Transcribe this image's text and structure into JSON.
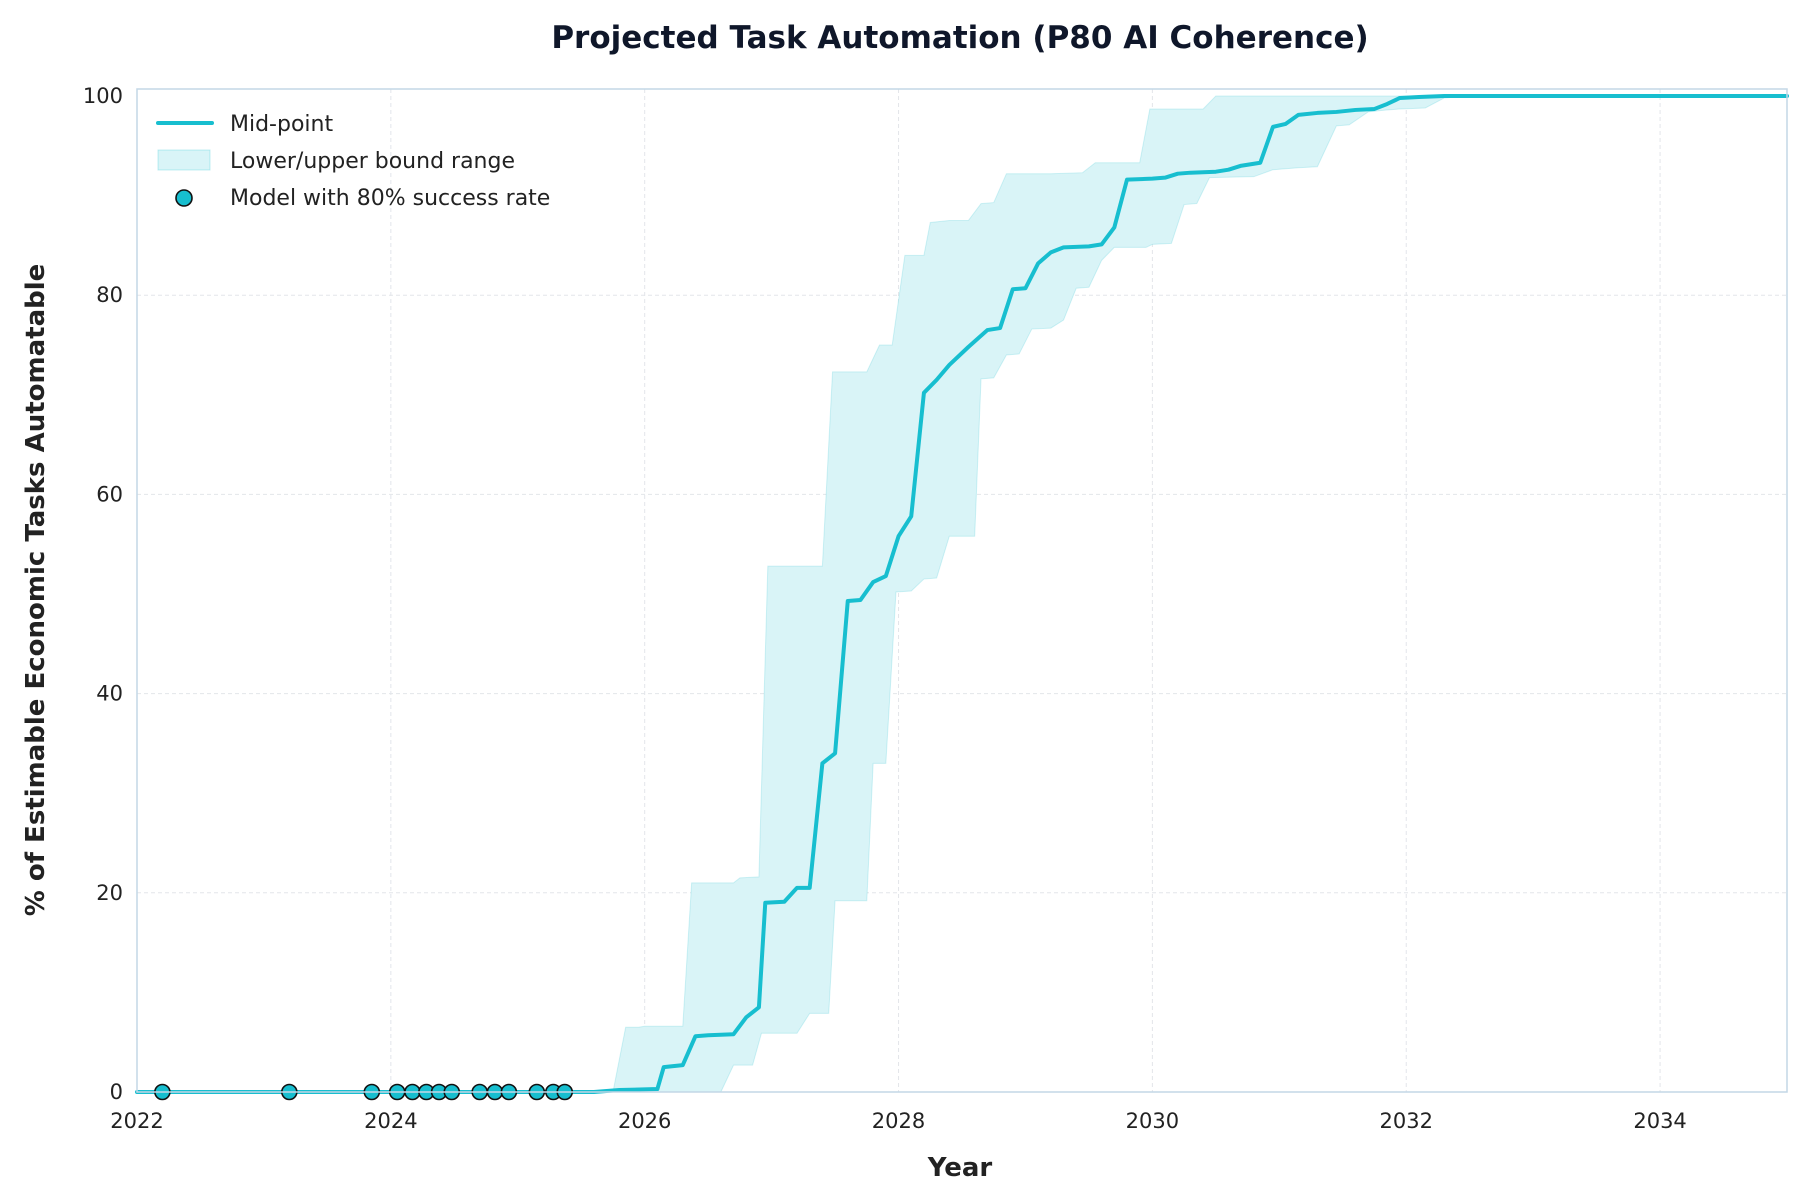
{
  "chart_data": {
    "type": "line",
    "title": "Projected Task Automation (P80 AI Coherence)",
    "xlabel": "Year",
    "ylabel": "% of Estimable Economic Tasks Automatable",
    "xlim": [
      2022,
      2035
    ],
    "ylim": [
      0,
      100
    ],
    "x_ticks": [
      "2022",
      "2024",
      "2026",
      "2028",
      "2030",
      "2032",
      "2034"
    ],
    "y_ticks": [
      "0",
      "20",
      "40",
      "60",
      "80",
      "100"
    ],
    "grid": true,
    "legend_position": "top-left",
    "colors": {
      "line": "#17becf",
      "band": "#d9f4f7",
      "marker_edge": "#111111"
    },
    "series": [
      {
        "name": "Mid-point",
        "type": "line",
        "points": [
          [
            2022.0,
            0
          ],
          [
            2025.6,
            0
          ],
          [
            2025.8,
            0.2
          ],
          [
            2026.1,
            0.3
          ],
          [
            2026.15,
            2.5
          ],
          [
            2026.3,
            2.7
          ],
          [
            2026.4,
            5.6
          ],
          [
            2026.5,
            5.7
          ],
          [
            2026.7,
            5.8
          ],
          [
            2026.8,
            7.5
          ],
          [
            2026.9,
            8.5
          ],
          [
            2026.95,
            19.0
          ],
          [
            2027.1,
            19.1
          ],
          [
            2027.2,
            20.5
          ],
          [
            2027.3,
            20.5
          ],
          [
            2027.4,
            33.0
          ],
          [
            2027.5,
            34.0
          ],
          [
            2027.6,
            49.3
          ],
          [
            2027.7,
            49.4
          ],
          [
            2027.8,
            51.2
          ],
          [
            2027.9,
            51.8
          ],
          [
            2028.0,
            55.8
          ],
          [
            2028.1,
            57.8
          ],
          [
            2028.2,
            70.2
          ],
          [
            2028.3,
            71.5
          ],
          [
            2028.4,
            73.0
          ],
          [
            2028.55,
            74.8
          ],
          [
            2028.7,
            76.5
          ],
          [
            2028.8,
            76.7
          ],
          [
            2028.9,
            80.6
          ],
          [
            2029.0,
            80.7
          ],
          [
            2029.1,
            83.2
          ],
          [
            2029.2,
            84.3
          ],
          [
            2029.3,
            84.8
          ],
          [
            2029.5,
            84.9
          ],
          [
            2029.6,
            85.1
          ],
          [
            2029.7,
            86.8
          ],
          [
            2029.8,
            91.6
          ],
          [
            2030.0,
            91.7
          ],
          [
            2030.1,
            91.8
          ],
          [
            2030.2,
            92.2
          ],
          [
            2030.3,
            92.3
          ],
          [
            2030.5,
            92.4
          ],
          [
            2030.6,
            92.6
          ],
          [
            2030.7,
            93.0
          ],
          [
            2030.85,
            93.3
          ],
          [
            2030.95,
            96.9
          ],
          [
            2031.05,
            97.2
          ],
          [
            2031.15,
            98.1
          ],
          [
            2031.3,
            98.3
          ],
          [
            2031.45,
            98.4
          ],
          [
            2031.6,
            98.6
          ],
          [
            2031.75,
            98.7
          ],
          [
            2031.85,
            99.2
          ],
          [
            2031.95,
            99.8
          ],
          [
            2032.1,
            99.9
          ],
          [
            2032.3,
            100
          ],
          [
            2035.0,
            100
          ]
        ]
      },
      {
        "name": "Lower/upper bound range",
        "type": "band",
        "upper": [
          [
            2022.0,
            0
          ],
          [
            2025.75,
            0
          ],
          [
            2025.85,
            6.5
          ],
          [
            2025.95,
            6.5
          ],
          [
            2026.0,
            6.6
          ],
          [
            2026.3,
            6.6
          ],
          [
            2026.37,
            21.0
          ],
          [
            2026.7,
            21.0
          ],
          [
            2026.75,
            21.5
          ],
          [
            2026.9,
            21.6
          ],
          [
            2026.97,
            52.8
          ],
          [
            2027.4,
            52.8
          ],
          [
            2027.48,
            72.3
          ],
          [
            2027.75,
            72.3
          ],
          [
            2027.85,
            75.0
          ],
          [
            2027.95,
            75.0
          ],
          [
            2028.05,
            84.0
          ],
          [
            2028.2,
            84.0
          ],
          [
            2028.25,
            87.3
          ],
          [
            2028.4,
            87.5
          ],
          [
            2028.55,
            87.5
          ],
          [
            2028.65,
            89.2
          ],
          [
            2028.75,
            89.3
          ],
          [
            2028.85,
            92.2
          ],
          [
            2029.2,
            92.2
          ],
          [
            2029.45,
            92.3
          ],
          [
            2029.55,
            93.3
          ],
          [
            2029.9,
            93.3
          ],
          [
            2029.98,
            98.7
          ],
          [
            2030.4,
            98.7
          ],
          [
            2030.5,
            100
          ],
          [
            2035.0,
            100
          ]
        ],
        "lower": [
          [
            2022.0,
            0
          ],
          [
            2026.6,
            0
          ],
          [
            2026.7,
            2.7
          ],
          [
            2026.85,
            2.7
          ],
          [
            2026.92,
            5.9
          ],
          [
            2027.2,
            5.9
          ],
          [
            2027.3,
            7.9
          ],
          [
            2027.45,
            7.9
          ],
          [
            2027.5,
            19.2
          ],
          [
            2027.75,
            19.2
          ],
          [
            2027.8,
            33.0
          ],
          [
            2027.9,
            33.0
          ],
          [
            2027.98,
            50.2
          ],
          [
            2028.1,
            50.3
          ],
          [
            2028.2,
            51.5
          ],
          [
            2028.3,
            51.6
          ],
          [
            2028.4,
            55.8
          ],
          [
            2028.6,
            55.8
          ],
          [
            2028.65,
            71.6
          ],
          [
            2028.75,
            71.7
          ],
          [
            2028.85,
            74.0
          ],
          [
            2028.95,
            74.1
          ],
          [
            2029.05,
            76.6
          ],
          [
            2029.2,
            76.7
          ],
          [
            2029.3,
            77.5
          ],
          [
            2029.4,
            80.7
          ],
          [
            2029.5,
            80.8
          ],
          [
            2029.6,
            83.5
          ],
          [
            2029.7,
            84.8
          ],
          [
            2029.95,
            84.8
          ],
          [
            2030.0,
            85.1
          ],
          [
            2030.15,
            85.2
          ],
          [
            2030.25,
            89.1
          ],
          [
            2030.35,
            89.2
          ],
          [
            2030.45,
            91.8
          ],
          [
            2030.8,
            91.9
          ],
          [
            2030.95,
            92.6
          ],
          [
            2031.15,
            92.8
          ],
          [
            2031.3,
            92.9
          ],
          [
            2031.45,
            97.0
          ],
          [
            2031.55,
            97.1
          ],
          [
            2031.7,
            98.4
          ],
          [
            2031.85,
            98.6
          ],
          [
            2031.95,
            98.7
          ],
          [
            2032.15,
            98.8
          ],
          [
            2032.3,
            99.8
          ],
          [
            2032.5,
            100
          ],
          [
            2035.0,
            100
          ]
        ]
      },
      {
        "name": "Model with 80% success rate",
        "type": "scatter",
        "points": [
          [
            2022.2,
            0
          ],
          [
            2023.2,
            0
          ],
          [
            2023.85,
            0
          ],
          [
            2024.05,
            0
          ],
          [
            2024.17,
            0
          ],
          [
            2024.28,
            0
          ],
          [
            2024.38,
            0
          ],
          [
            2024.48,
            0
          ],
          [
            2024.7,
            0
          ],
          [
            2024.82,
            0
          ],
          [
            2024.93,
            0
          ],
          [
            2025.15,
            0
          ],
          [
            2025.28,
            0
          ],
          [
            2025.37,
            0
          ]
        ]
      }
    ]
  }
}
